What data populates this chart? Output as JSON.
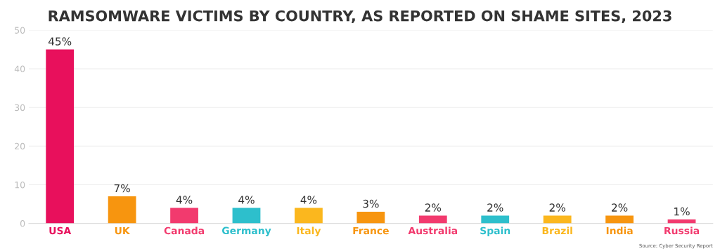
{
  "chart_data": {
    "type": "bar",
    "title": "RAMSOMWARE VICTIMS BY COUNTRY, AS REPORTED ON SHAME SITES, 2023",
    "categories": [
      "USA",
      "UK",
      "Canada",
      "Germany",
      "Italy",
      "France",
      "Australia",
      "Spain",
      "Brazil",
      "India",
      "Russia"
    ],
    "values": [
      45,
      7,
      4,
      4,
      4,
      3,
      2,
      2,
      2,
      2,
      1
    ],
    "value_labels": [
      "45%",
      "7%",
      "4%",
      "4%",
      "4%",
      "3%",
      "2%",
      "2%",
      "2%",
      "2%",
      "1%"
    ],
    "colors": [
      "#e8105c",
      "#f7950f",
      "#f23a6e",
      "#2dbfcc",
      "#fbb71e",
      "#f7950f",
      "#f23a6e",
      "#2dbfcc",
      "#fbb71e",
      "#f7950f",
      "#f23a6e"
    ],
    "ylim": [
      0,
      50
    ],
    "yticks": [
      0,
      10,
      20,
      30,
      40,
      50
    ],
    "grid": "y",
    "annotations": [
      "Source: Cyber Security Report"
    ]
  }
}
